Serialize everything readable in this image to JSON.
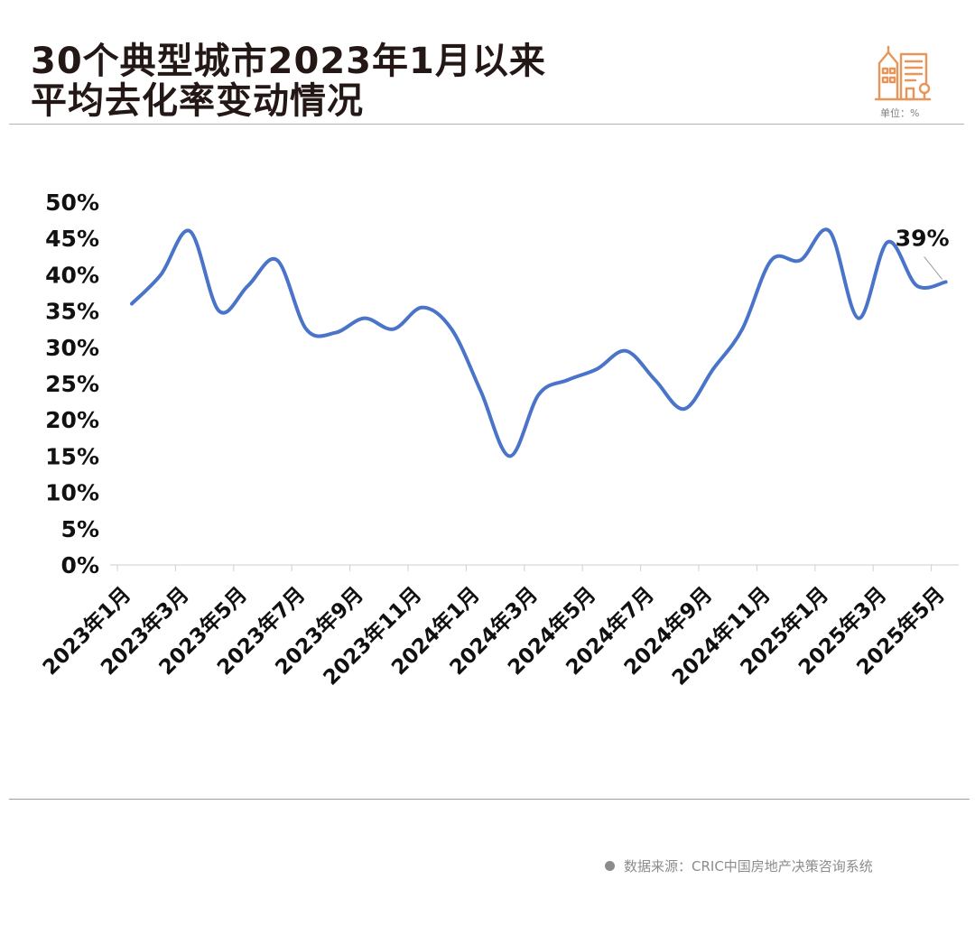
{
  "header": {
    "title_line1": "30个典型城市2023年1月以来",
    "title_line2": "平均去化率变动情况",
    "unit": "单位：%",
    "icon": "city-buildings-icon"
  },
  "footer": {
    "source": "数据来源：CRIC中国房地产决策咨询系统"
  },
  "colors": {
    "line": "#4a74c9",
    "icon": "#e8955a",
    "text": "#111111"
  },
  "chart_data": {
    "type": "line",
    "title": "",
    "xlabel": "",
    "ylabel": "",
    "ylim": [
      0,
      50
    ],
    "y_ticks": [
      "0%",
      "5%",
      "10%",
      "15%",
      "20%",
      "25%",
      "30%",
      "35%",
      "40%",
      "45%",
      "50%"
    ],
    "x_tick_labels": [
      "2023年1月",
      "2023年3月",
      "2023年5月",
      "2023年7月",
      "2023年9月",
      "2023年11月",
      "2024年1月",
      "2024年3月",
      "2024年5月",
      "2024年7月",
      "2024年9月",
      "2024年11月",
      "2025年1月",
      "2025年3月",
      "2025年5月"
    ],
    "categories": [
      "2023年1月",
      "2023年2月",
      "2023年3月",
      "2023年4月",
      "2023年5月",
      "2023年6月",
      "2023年7月",
      "2023年8月",
      "2023年9月",
      "2023年10月",
      "2023年11月",
      "2023年12月",
      "2024年1月",
      "2024年2月",
      "2024年3月",
      "2024年4月",
      "2024年5月",
      "2024年6月",
      "2024年7月",
      "2024年8月",
      "2024年9月",
      "2024年10月",
      "2024年11月",
      "2024年12月",
      "2025年1月",
      "2025年2月",
      "2025年3月",
      "2025年4月",
      "2025年5月"
    ],
    "series": [
      {
        "values": [
          36,
          40,
          46,
          35,
          38.5,
          42,
          32.5,
          32,
          34,
          32.5,
          35.5,
          32.5,
          24,
          15,
          23.5,
          25.5,
          27,
          29.5,
          25.5,
          21.5,
          27,
          32.5,
          42,
          42,
          46,
          34,
          44.5,
          38.5,
          39
        ]
      }
    ],
    "annotations": [
      {
        "text": "39%",
        "category": "2025年5月",
        "value": 39
      }
    ],
    "grid": false,
    "legend": "none"
  }
}
